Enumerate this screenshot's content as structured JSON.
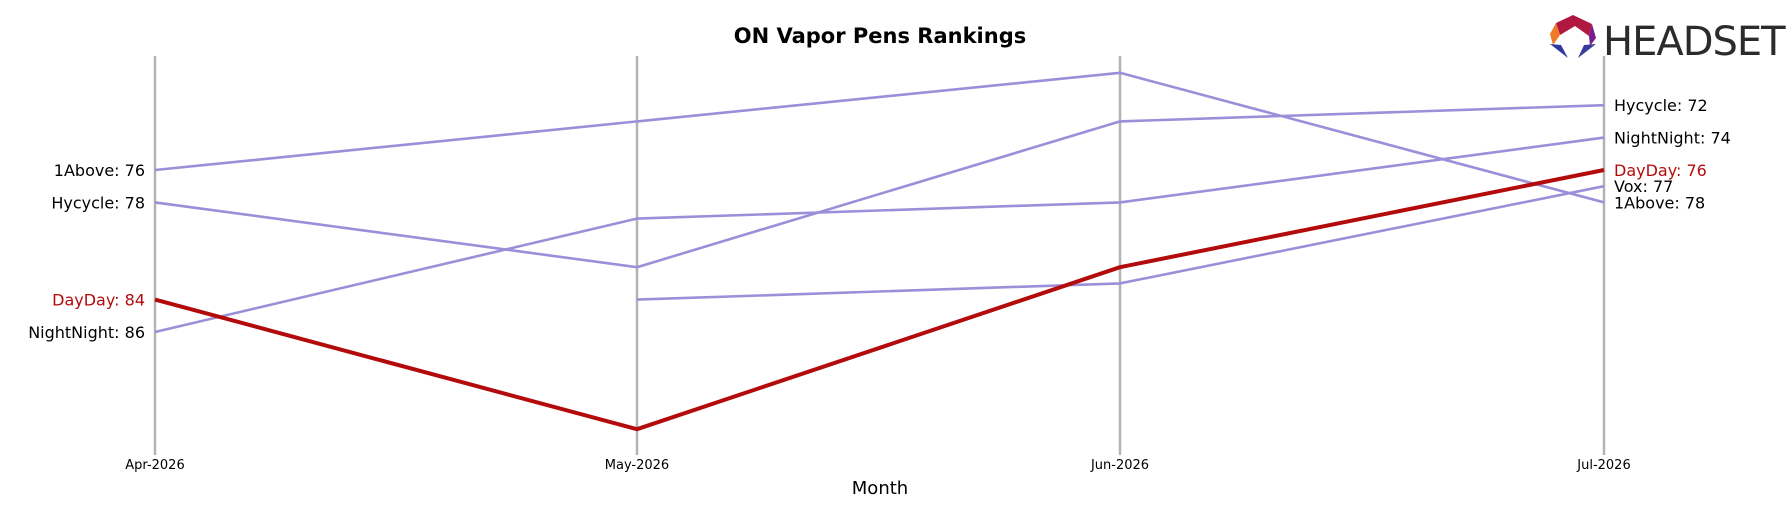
{
  "chart_data": {
    "type": "line",
    "title": "ON Vapor Pens Rankings",
    "xlabel": "Month",
    "ylabel": "",
    "categories": [
      "Apr-2026",
      "May-2026",
      "Jun-2026",
      "Jul-2026"
    ],
    "y_inverted": true,
    "ylim": [
      95,
      71
    ],
    "grid": "vertical lines at each month",
    "highlight_color": "#b30b0b",
    "series_color": "#9a8fd8",
    "axis_line_color": "#b3b3b3",
    "series": [
      {
        "name": "1Above",
        "values": [
          76,
          73,
          70,
          78
        ],
        "highlight": false
      },
      {
        "name": "Hycycle",
        "values": [
          78,
          82,
          73,
          72
        ],
        "highlight": false
      },
      {
        "name": "NightNight",
        "values": [
          86,
          79,
          78,
          74
        ],
        "highlight": false
      },
      {
        "name": "Vox",
        "values": [
          null,
          84,
          83,
          77
        ],
        "highlight": false
      },
      {
        "name": "DayDay",
        "values": [
          84,
          92,
          82,
          76
        ],
        "highlight": true
      }
    ],
    "start_labels": [
      {
        "text": "1Above: 76",
        "highlight": false
      },
      {
        "text": "Hycycle: 78",
        "highlight": false
      },
      {
        "text": "DayDay: 84",
        "highlight": true
      },
      {
        "text": "NightNight: 86",
        "highlight": false
      }
    ],
    "end_labels": [
      {
        "text": "Hycycle: 72",
        "highlight": false
      },
      {
        "text": "NightNight: 74",
        "highlight": false
      },
      {
        "text": "DayDay: 76",
        "highlight": true
      },
      {
        "text": "Vox: 77",
        "highlight": false
      },
      {
        "text": "1Above: 78",
        "highlight": false
      }
    ]
  },
  "logo": {
    "text": "HEADSET",
    "icon": "headset-hexagon-logo-icon"
  }
}
